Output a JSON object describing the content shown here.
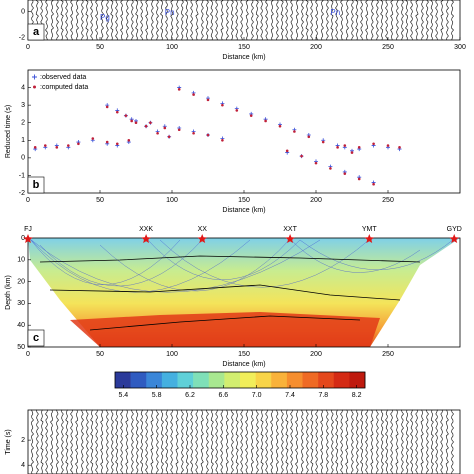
{
  "chart_data": [
    {
      "type": "traces",
      "letter": "a",
      "xlabel": "Distance (km)",
      "xlim": [
        0,
        300
      ],
      "xticks": [
        0,
        50,
        100,
        150,
        200,
        250,
        300
      ],
      "ylim": [
        -2.2,
        0.9
      ],
      "yticks": [
        0,
        -2
      ],
      "annotations": [
        {
          "text": "Pg",
          "x": 50,
          "y": -0.5
        },
        {
          "text": "Pn",
          "x": 95,
          "y": -0.1
        },
        {
          "text": "Pn",
          "x": 210,
          "y": -0.1
        }
      ]
    },
    {
      "type": "scatter",
      "letter": "b",
      "xlabel": "Distance (km)",
      "ylabel": "Reduced time (s)",
      "xlim": [
        0,
        300
      ],
      "xticks": [
        0,
        50,
        100,
        150,
        200,
        250
      ],
      "ylim": [
        -2,
        5
      ],
      "yticks": [
        -2,
        -1,
        0,
        1,
        2,
        3,
        4
      ],
      "series": [
        {
          "name": ":observed data",
          "color": "#3a4fd8",
          "marker": "+",
          "x": [
            5,
            12,
            20,
            28,
            35,
            45,
            55,
            62,
            70,
            55,
            62,
            68,
            75,
            82,
            90,
            98,
            72,
            85,
            95,
            105,
            115,
            125,
            135,
            105,
            115,
            125,
            135,
            145,
            155,
            165,
            175,
            185,
            195,
            205,
            215,
            225,
            180,
            190,
            200,
            210,
            220,
            230,
            240,
            220,
            230,
            240,
            250,
            258
          ],
          "values": [
            0.5,
            0.6,
            0.7,
            0.6,
            0.9,
            1.0,
            0.8,
            0.7,
            0.9,
            3.0,
            2.7,
            2.4,
            2.1,
            1.8,
            1.5,
            1.2,
            2.2,
            2.0,
            1.8,
            1.7,
            1.5,
            1.3,
            1.1,
            4.0,
            3.7,
            3.4,
            3.1,
            2.8,
            2.5,
            2.2,
            1.9,
            1.6,
            1.3,
            1.0,
            0.7,
            0.4,
            0.3,
            0.1,
            -0.2,
            -0.5,
            -0.8,
            -1.1,
            -1.4,
            0.6,
            0.5,
            0.7,
            0.6,
            0.5
          ]
        },
        {
          "name": ":computed data",
          "color": "#c0203a",
          "marker": "*",
          "x": [
            5,
            12,
            20,
            28,
            35,
            45,
            55,
            62,
            70,
            55,
            62,
            68,
            75,
            82,
            90,
            98,
            72,
            85,
            95,
            105,
            115,
            125,
            135,
            105,
            115,
            125,
            135,
            145,
            155,
            165,
            175,
            185,
            195,
            205,
            215,
            225,
            180,
            190,
            200,
            210,
            220,
            230,
            240,
            220,
            230,
            240,
            250,
            258
          ],
          "values": [
            0.6,
            0.7,
            0.6,
            0.7,
            0.8,
            1.1,
            0.9,
            0.8,
            1.0,
            2.9,
            2.6,
            2.4,
            2.0,
            1.8,
            1.4,
            1.2,
            2.1,
            2.0,
            1.7,
            1.6,
            1.4,
            1.3,
            1.0,
            3.9,
            3.6,
            3.3,
            3.0,
            2.7,
            2.4,
            2.1,
            1.8,
            1.5,
            1.2,
            0.9,
            0.6,
            0.3,
            0.4,
            0.1,
            -0.3,
            -0.6,
            -0.9,
            -1.2,
            -1.5,
            0.7,
            0.6,
            0.8,
            0.7,
            0.6
          ]
        }
      ],
      "legend": "upper left"
    },
    {
      "type": "model",
      "letter": "c",
      "xlabel": "Distance (km)",
      "ylabel": "Depth (km)",
      "xlim": [
        0,
        300
      ],
      "xticks": [
        0,
        50,
        100,
        150,
        200,
        250
      ],
      "ylim": [
        50,
        0
      ],
      "yticks": [
        0,
        10,
        20,
        30,
        40,
        50
      ],
      "stations": [
        {
          "name": "FJ",
          "x": 0
        },
        {
          "name": "XXK",
          "x": 82
        },
        {
          "name": "XX",
          "x": 121
        },
        {
          "name": "XXT",
          "x": 182
        },
        {
          "name": "YMT",
          "x": 237
        },
        {
          "name": "GYD",
          "x": 296
        }
      ],
      "colorbar": {
        "lim": [
          5.3,
          8.3
        ],
        "ticks": [
          {
            "value": 5.4,
            "label": "5.4"
          },
          {
            "value": 5.8,
            "label": "5.8"
          },
          {
            "value": 6.2,
            "label": "6.2"
          },
          {
            "value": 6.6,
            "label": "6.6"
          },
          {
            "value": 7.0,
            "label": "7.0"
          },
          {
            "value": 7.4,
            "label": "7.4"
          },
          {
            "value": 7.8,
            "label": "7.8"
          },
          {
            "value": 8.2,
            "label": "8.2"
          }
        ],
        "colors": [
          "#2b3a9a",
          "#2f5bc0",
          "#3a86d8",
          "#45b0e0",
          "#5fd0d8",
          "#7fe0b8",
          "#a8e890",
          "#d2ee70",
          "#f1ee5a",
          "#f8d448",
          "#f9b23a",
          "#f68e2e",
          "#ef6a24",
          "#e4481c",
          "#d42a14",
          "#bf1a0e"
        ]
      }
    },
    {
      "type": "traces",
      "ylabel": "Time (s)",
      "xlim": [
        0,
        300
      ],
      "ylim": [
        4.7,
        -0.4
      ],
      "yticks": [
        2,
        4
      ]
    }
  ]
}
